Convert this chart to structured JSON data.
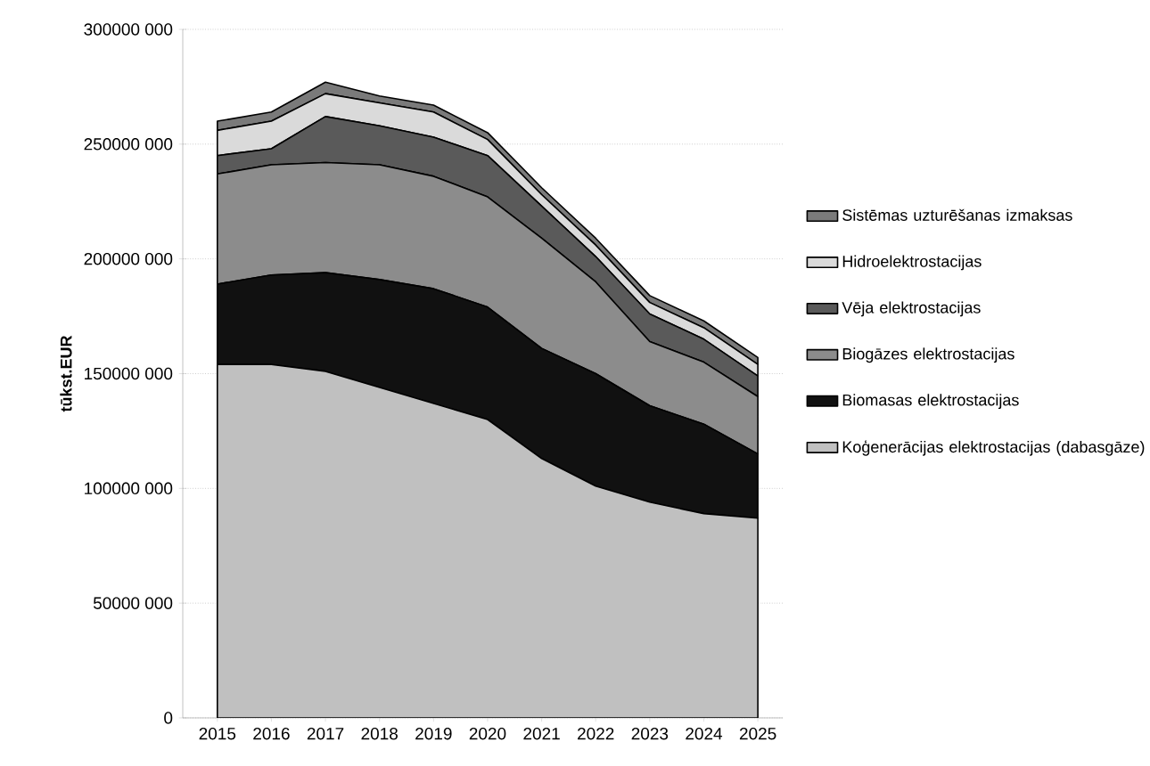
{
  "chart_data": {
    "type": "area",
    "stacked": true,
    "ylabel": "tūkst.EUR",
    "categories": [
      "2015",
      "2016",
      "2017",
      "2018",
      "2019",
      "2020",
      "2021",
      "2022",
      "2023",
      "2024",
      "2025"
    ],
    "series": [
      {
        "name": "Koģenerācijas elektrostacijas (dabasgāze)",
        "color": "#c0c0c0",
        "values": [
          154000000,
          154000000,
          151000000,
          144000000,
          137000000,
          130000000,
          113000000,
          101000000,
          94000000,
          89000000,
          87000000
        ]
      },
      {
        "name": "Biomasas elektrostacijas",
        "color": "#111111",
        "values": [
          35000000,
          39000000,
          43000000,
          47000000,
          50000000,
          49000000,
          48000000,
          49000000,
          42000000,
          39000000,
          28000000
        ]
      },
      {
        "name": "Biogāzes elektrostacijas",
        "color": "#8c8c8c",
        "values": [
          48000000,
          48000000,
          48000000,
          50000000,
          49000000,
          48000000,
          48000000,
          40000000,
          28000000,
          27000000,
          25000000
        ]
      },
      {
        "name": "Vēja elektrostacijas",
        "color": "#5a5a5a",
        "values": [
          8000000,
          7000000,
          20000000,
          17000000,
          17000000,
          18000000,
          14000000,
          11000000,
          12000000,
          10000000,
          9000000
        ]
      },
      {
        "name": "Hidroelektrostacijas",
        "color": "#dadada",
        "values": [
          11000000,
          12000000,
          10000000,
          10000000,
          11000000,
          7000000,
          5000000,
          5000000,
          5000000,
          5000000,
          5000000
        ]
      },
      {
        "name": "Sistēmas uzturēšanas izmaksas",
        "color": "#7a7a7a",
        "values": [
          4000000,
          4000000,
          5000000,
          3000000,
          3000000,
          3000000,
          3000000,
          3000000,
          3000000,
          3000000,
          3000000
        ]
      }
    ],
    "ylim": [
      0,
      300000000
    ],
    "yticks": [
      0,
      {
        "value": 50000000,
        "label": "50000 000"
      },
      {
        "value": 100000000,
        "label": "100000 000"
      },
      {
        "value": 150000000,
        "label": "150000 000"
      },
      {
        "value": 200000000,
        "label": "200000 000"
      },
      {
        "value": 250000000,
        "label": "250000 000"
      },
      {
        "value": 300000000,
        "label": "300000 000"
      }
    ],
    "grid": "y",
    "legend": "right"
  }
}
